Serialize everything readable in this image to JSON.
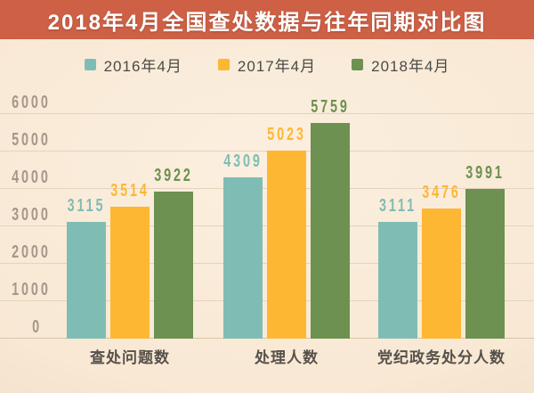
{
  "title": "2018年4月全国查处数据与往年同期对比图",
  "chart_data": {
    "type": "bar",
    "title": "2018年4月全国查处数据与往年同期对比图",
    "categories": [
      "查处问题数",
      "处理人数",
      "党纪政务处分人数"
    ],
    "series": [
      {
        "name": "2016年4月",
        "color": "#7fbdb4",
        "values": [
          3115,
          4309,
          3111
        ]
      },
      {
        "name": "2017年4月",
        "color": "#fdb733",
        "values": [
          3514,
          5023,
          3476
        ]
      },
      {
        "name": "2018年4月",
        "color": "#6c9150",
        "values": [
          3922,
          5759,
          3991
        ]
      }
    ],
    "ylim": [
      0,
      6000
    ],
    "yticks": [
      0,
      1000,
      2000,
      3000,
      4000,
      5000,
      6000
    ],
    "grid": true,
    "legend_position": "top",
    "value_labels": true,
    "xlabel": "",
    "ylabel": ""
  },
  "colors": {
    "banner": "#cd6045",
    "title_text": "#ffffff",
    "background_center": "#fcefdf",
    "background_edge": "#ebd8bf",
    "gridline": "#e4d2bc",
    "axis_text": "#a5988a",
    "category_text": "#56514a",
    "legend_text": "#4b4a46"
  }
}
